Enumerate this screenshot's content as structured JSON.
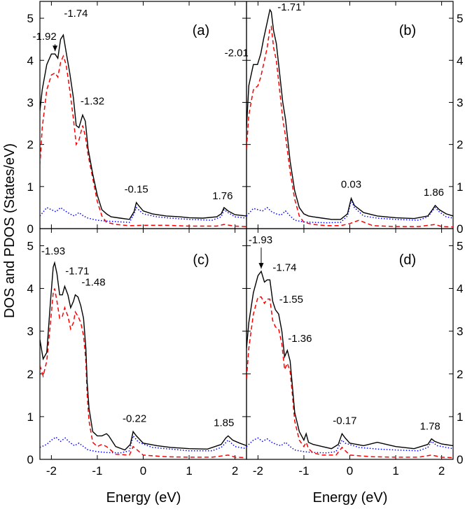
{
  "figure": {
    "ylabel": "DOS and PDOS (States/eV)",
    "xlabels": [
      "Energy (eV)",
      "Energy (eV)"
    ]
  },
  "colors": {
    "total": "#000000",
    "partial_red": "#ff0000",
    "partial_blue": "#0000ff"
  },
  "chart_data": [
    {
      "type": "line",
      "panel": "(a)",
      "xlim": [
        -2.25,
        2.25
      ],
      "ylim": [
        0,
        5.4
      ],
      "xticks": [
        -2,
        -1,
        0,
        1,
        2
      ],
      "yticks": [
        0,
        1,
        2,
        3,
        4,
        5
      ],
      "series": [
        {
          "style": "solid",
          "color": "#000000",
          "x": [
            -2.25,
            -2.2,
            -2.1,
            -2.0,
            -1.92,
            -1.86,
            -1.8,
            -1.74,
            -1.68,
            -1.6,
            -1.52,
            -1.46,
            -1.4,
            -1.32,
            -1.26,
            -1.2,
            -1.1,
            -1.0,
            -0.9,
            -0.8,
            -0.7,
            -0.5,
            -0.3,
            -0.2,
            -0.15,
            -0.1,
            0.0,
            0.2,
            0.5,
            0.8,
            1.0,
            1.3,
            1.6,
            1.7,
            1.76,
            1.85,
            2.0,
            2.25
          ],
          "y": [
            2.8,
            3.3,
            3.9,
            4.15,
            4.15,
            4.05,
            4.5,
            4.6,
            4.2,
            3.7,
            3.1,
            2.45,
            2.4,
            2.7,
            2.55,
            1.9,
            1.3,
            0.8,
            0.45,
            0.35,
            0.28,
            0.25,
            0.22,
            0.4,
            0.62,
            0.55,
            0.42,
            0.35,
            0.3,
            0.28,
            0.26,
            0.25,
            0.28,
            0.35,
            0.5,
            0.42,
            0.33,
            0.3
          ]
        },
        {
          "style": "dashed",
          "color": "#ff0000",
          "x": [
            -2.25,
            -2.2,
            -2.1,
            -2.0,
            -1.92,
            -1.86,
            -1.8,
            -1.74,
            -1.68,
            -1.6,
            -1.52,
            -1.46,
            -1.4,
            -1.32,
            -1.26,
            -1.2,
            -1.1,
            -1.0,
            -0.9,
            -0.8,
            -0.6,
            -0.3,
            0.0,
            0.5,
            1.0,
            1.6,
            1.76,
            2.0,
            2.25
          ],
          "y": [
            1.5,
            2.4,
            3.3,
            3.65,
            3.7,
            3.6,
            3.95,
            4.1,
            3.9,
            3.3,
            2.6,
            2.0,
            2.1,
            2.45,
            2.2,
            1.75,
            1.2,
            0.65,
            0.3,
            0.15,
            0.1,
            0.07,
            0.08,
            0.08,
            0.06,
            0.06,
            0.1,
            0.06,
            0.05
          ]
        },
        {
          "style": "dotted",
          "color": "#0000ff",
          "x": [
            -2.25,
            -2.1,
            -2.0,
            -1.9,
            -1.8,
            -1.7,
            -1.6,
            -1.5,
            -1.4,
            -1.3,
            -1.2,
            -1.0,
            -0.8,
            -0.5,
            -0.3,
            -0.2,
            -0.15,
            -0.1,
            0.0,
            0.3,
            0.6,
            1.0,
            1.5,
            1.7,
            1.76,
            1.85,
            2.0,
            2.25
          ],
          "y": [
            0.3,
            0.5,
            0.45,
            0.4,
            0.5,
            0.42,
            0.35,
            0.3,
            0.38,
            0.3,
            0.25,
            0.2,
            0.18,
            0.16,
            0.15,
            0.35,
            0.5,
            0.45,
            0.35,
            0.28,
            0.25,
            0.22,
            0.2,
            0.28,
            0.45,
            0.38,
            0.28,
            0.25
          ]
        }
      ],
      "annotations": [
        {
          "text": "-1.92",
          "x": -1.92,
          "y": 4.15,
          "arrow": true
        },
        {
          "text": "-1.74",
          "x": -1.74,
          "y": 4.6
        },
        {
          "text": "-1.32",
          "x": -1.32,
          "y": 2.7
        },
        {
          "text": "-0.15",
          "x": -0.15,
          "y": 0.62
        },
        {
          "text": "1.76",
          "x": 1.76,
          "y": 0.5
        }
      ]
    },
    {
      "type": "line",
      "panel": "(b)",
      "xlim": [
        -2.25,
        2.25
      ],
      "ylim": [
        0,
        5.4
      ],
      "xticks": [
        -2,
        -1,
        0,
        1,
        2
      ],
      "yticks": [
        0,
        1,
        2,
        3,
        4,
        5
      ],
      "series": [
        {
          "style": "solid",
          "color": "#000000",
          "x": [
            -2.25,
            -2.2,
            -2.1,
            -2.01,
            -1.94,
            -1.88,
            -1.8,
            -1.74,
            -1.71,
            -1.66,
            -1.6,
            -1.52,
            -1.46,
            -1.4,
            -1.3,
            -1.2,
            -1.1,
            -1.0,
            -0.9,
            -0.8,
            -0.6,
            -0.4,
            -0.2,
            -0.05,
            0.03,
            0.1,
            0.3,
            0.6,
            1.0,
            1.4,
            1.7,
            1.8,
            1.86,
            1.95,
            2.1,
            2.25
          ],
          "y": [
            2.4,
            3.4,
            3.9,
            3.9,
            4.15,
            4.5,
            4.9,
            5.2,
            5.15,
            4.7,
            4.4,
            3.6,
            3.0,
            2.6,
            1.6,
            0.9,
            0.5,
            0.35,
            0.3,
            0.28,
            0.25,
            0.22,
            0.22,
            0.35,
            0.72,
            0.55,
            0.38,
            0.3,
            0.26,
            0.24,
            0.3,
            0.45,
            0.55,
            0.45,
            0.35,
            0.3
          ]
        },
        {
          "style": "dashed",
          "color": "#ff0000",
          "x": [
            -2.25,
            -2.2,
            -2.1,
            -2.0,
            -1.94,
            -1.88,
            -1.8,
            -1.74,
            -1.71,
            -1.66,
            -1.6,
            -1.52,
            -1.46,
            -1.4,
            -1.3,
            -1.2,
            -1.1,
            -1.0,
            -0.8,
            -0.5,
            -0.2,
            0.0,
            0.2,
            0.5,
            1.0,
            1.5,
            1.86,
            2.0,
            2.25
          ],
          "y": [
            1.9,
            2.7,
            3.3,
            3.4,
            3.6,
            3.9,
            4.3,
            4.75,
            4.8,
            4.3,
            4.0,
            3.2,
            2.6,
            2.2,
            1.35,
            0.7,
            0.3,
            0.15,
            0.1,
            0.07,
            0.07,
            0.12,
            0.2,
            0.07,
            0.05,
            0.05,
            0.1,
            0.05,
            0.04
          ]
        },
        {
          "style": "dotted",
          "color": "#0000ff",
          "x": [
            -2.25,
            -2.1,
            -2.0,
            -1.9,
            -1.8,
            -1.7,
            -1.6,
            -1.5,
            -1.4,
            -1.3,
            -1.2,
            -1.0,
            -0.8,
            -0.5,
            -0.2,
            -0.05,
            0.03,
            0.1,
            0.3,
            0.6,
            1.0,
            1.5,
            1.7,
            1.86,
            1.95,
            2.1,
            2.25
          ],
          "y": [
            0.3,
            0.48,
            0.45,
            0.42,
            0.5,
            0.4,
            0.35,
            0.32,
            0.42,
            0.3,
            0.2,
            0.16,
            0.15,
            0.14,
            0.15,
            0.3,
            0.68,
            0.5,
            0.3,
            0.25,
            0.22,
            0.2,
            0.28,
            0.5,
            0.4,
            0.28,
            0.25
          ]
        }
      ],
      "annotations": [
        {
          "text": "-2.01",
          "x": -2.01,
          "y": 3.9
        },
        {
          "text": "-1.71",
          "x": -1.71,
          "y": 5.15
        },
        {
          "text": "0.03",
          "x": 0.03,
          "y": 0.72
        },
        {
          "text": "1.86",
          "x": 1.86,
          "y": 0.55
        }
      ]
    },
    {
      "type": "line",
      "panel": "(c)",
      "xlim": [
        -2.25,
        2.25
      ],
      "ylim": [
        0,
        5.4
      ],
      "xticks": [
        -2,
        -1,
        0,
        1,
        2
      ],
      "yticks": [
        0,
        1,
        2,
        3,
        4,
        5
      ],
      "series": [
        {
          "style": "solid",
          "color": "#000000",
          "x": [
            -2.25,
            -2.18,
            -2.1,
            -2.02,
            -1.96,
            -1.93,
            -1.88,
            -1.82,
            -1.76,
            -1.71,
            -1.64,
            -1.58,
            -1.52,
            -1.48,
            -1.42,
            -1.36,
            -1.3,
            -1.25,
            -1.22,
            -1.18,
            -1.1,
            -1.0,
            -0.9,
            -0.8,
            -0.75,
            -0.6,
            -0.4,
            -0.28,
            -0.22,
            -0.15,
            0.0,
            0.3,
            0.6,
            1.0,
            1.4,
            1.7,
            1.8,
            1.85,
            1.95,
            2.1,
            2.25
          ],
          "y": [
            2.8,
            2.35,
            2.5,
            3.7,
            4.5,
            4.6,
            4.35,
            3.85,
            3.85,
            4.05,
            3.85,
            3.55,
            3.7,
            3.85,
            3.8,
            3.6,
            3.3,
            2.6,
            1.8,
            1.2,
            0.65,
            0.55,
            0.55,
            0.6,
            0.55,
            0.3,
            0.22,
            0.35,
            0.65,
            0.55,
            0.38,
            0.32,
            0.28,
            0.25,
            0.24,
            0.35,
            0.5,
            0.55,
            0.45,
            0.38,
            0.32
          ]
        },
        {
          "style": "dashed",
          "color": "#ff0000",
          "x": [
            -2.25,
            -2.18,
            -2.1,
            -2.02,
            -1.96,
            -1.93,
            -1.88,
            -1.82,
            -1.76,
            -1.71,
            -1.64,
            -1.58,
            -1.52,
            -1.48,
            -1.42,
            -1.36,
            -1.3,
            -1.25,
            -1.22,
            -1.18,
            -1.1,
            -1.0,
            -0.9,
            -0.8,
            -0.6,
            -0.3,
            -0.22,
            0.0,
            0.5,
            1.0,
            1.5,
            1.85,
            2.0,
            2.25
          ],
          "y": [
            2.2,
            1.95,
            2.3,
            3.2,
            3.9,
            4.0,
            3.7,
            3.3,
            3.35,
            3.55,
            3.35,
            3.05,
            3.2,
            3.45,
            3.35,
            3.2,
            2.9,
            2.3,
            1.5,
            0.9,
            0.4,
            0.3,
            0.35,
            0.3,
            0.12,
            0.1,
            0.3,
            0.1,
            0.06,
            0.05,
            0.05,
            0.1,
            0.05,
            0.04
          ]
        },
        {
          "style": "dotted",
          "color": "#0000ff",
          "x": [
            -2.25,
            -2.1,
            -2.0,
            -1.9,
            -1.8,
            -1.7,
            -1.6,
            -1.5,
            -1.4,
            -1.3,
            -1.2,
            -1.0,
            -0.8,
            -0.5,
            -0.3,
            -0.22,
            -0.1,
            0.2,
            0.6,
            1.0,
            1.5,
            1.7,
            1.85,
            2.0,
            2.25
          ],
          "y": [
            0.28,
            0.35,
            0.45,
            0.52,
            0.42,
            0.5,
            0.4,
            0.32,
            0.38,
            0.3,
            0.22,
            0.18,
            0.16,
            0.15,
            0.2,
            0.55,
            0.4,
            0.28,
            0.24,
            0.2,
            0.2,
            0.28,
            0.45,
            0.3,
            0.25
          ]
        }
      ],
      "annotations": [
        {
          "text": "-1.93",
          "x": -1.93,
          "y": 4.6
        },
        {
          "text": "-1.71",
          "x": -1.71,
          "y": 4.05
        },
        {
          "text": "-1.48",
          "x": -1.48,
          "y": 3.85
        },
        {
          "text": "-0.22",
          "x": -0.22,
          "y": 0.65
        },
        {
          "text": "1.85",
          "x": 1.85,
          "y": 0.55
        }
      ]
    },
    {
      "type": "line",
      "panel": "(d)",
      "xlim": [
        -2.25,
        2.25
      ],
      "ylim": [
        0,
        5.4
      ],
      "xticks": [
        -2,
        -1,
        0,
        1,
        2
      ],
      "yticks": [
        0,
        1,
        2,
        3,
        4,
        5
      ],
      "series": [
        {
          "style": "solid",
          "color": "#000000",
          "x": [
            -2.25,
            -2.2,
            -2.1,
            -2.0,
            -1.93,
            -1.86,
            -1.8,
            -1.74,
            -1.68,
            -1.62,
            -1.55,
            -1.48,
            -1.42,
            -1.36,
            -1.3,
            -1.25,
            -1.2,
            -1.1,
            -1.0,
            -0.95,
            -0.9,
            -0.8,
            -0.6,
            -0.4,
            -0.25,
            -0.17,
            -0.1,
            0.0,
            0.3,
            0.6,
            1.0,
            1.4,
            1.7,
            1.78,
            1.85,
            2.0,
            2.25
          ],
          "y": [
            2.6,
            3.2,
            3.9,
            4.3,
            4.4,
            4.15,
            4.2,
            4.2,
            3.7,
            3.5,
            3.4,
            3.0,
            2.4,
            2.55,
            2.3,
            1.7,
            1.1,
            0.65,
            0.45,
            0.6,
            0.4,
            0.35,
            0.3,
            0.25,
            0.35,
            0.6,
            0.5,
            0.38,
            0.32,
            0.4,
            0.3,
            0.25,
            0.35,
            0.48,
            0.42,
            0.36,
            0.32
          ]
        },
        {
          "style": "dashed",
          "color": "#ff0000",
          "x": [
            -2.25,
            -2.2,
            -2.1,
            -2.0,
            -1.93,
            -1.86,
            -1.8,
            -1.74,
            -1.68,
            -1.62,
            -1.55,
            -1.48,
            -1.42,
            -1.36,
            -1.3,
            -1.25,
            -1.2,
            -1.1,
            -1.0,
            -0.95,
            -0.9,
            -0.8,
            -0.6,
            -0.3,
            -0.17,
            0.0,
            0.5,
            1.0,
            1.5,
            1.78,
            2.0,
            2.25
          ],
          "y": [
            1.9,
            2.6,
            3.4,
            3.8,
            3.8,
            3.65,
            3.75,
            3.75,
            3.25,
            3.1,
            3.05,
            2.7,
            2.1,
            2.25,
            2.05,
            1.5,
            0.9,
            0.45,
            0.3,
            0.4,
            0.25,
            0.15,
            0.1,
            0.1,
            0.28,
            0.1,
            0.06,
            0.05,
            0.05,
            0.1,
            0.05,
            0.04
          ]
        },
        {
          "style": "dotted",
          "color": "#0000ff",
          "x": [
            -2.25,
            -2.1,
            -2.0,
            -1.9,
            -1.8,
            -1.7,
            -1.6,
            -1.5,
            -1.4,
            -1.3,
            -1.2,
            -1.0,
            -0.8,
            -0.5,
            -0.3,
            -0.17,
            -0.1,
            0.2,
            0.6,
            1.0,
            1.5,
            1.7,
            1.78,
            1.9,
            2.25
          ],
          "y": [
            0.3,
            0.45,
            0.5,
            0.42,
            0.48,
            0.4,
            0.35,
            0.32,
            0.4,
            0.3,
            0.22,
            0.18,
            0.16,
            0.15,
            0.18,
            0.45,
            0.38,
            0.28,
            0.24,
            0.22,
            0.2,
            0.28,
            0.42,
            0.32,
            0.25
          ]
        }
      ],
      "annotations": [
        {
          "text": "-1.93",
          "x": -1.93,
          "y": 4.4,
          "arrow": true
        },
        {
          "text": "-1.74",
          "x": -1.74,
          "y": 4.2
        },
        {
          "text": "-1.55",
          "x": -1.55,
          "y": 3.4
        },
        {
          "text": "-1.36",
          "x": -1.36,
          "y": 2.55
        },
        {
          "text": "-0.17",
          "x": -0.17,
          "y": 0.6
        },
        {
          "text": "1.78",
          "x": 1.78,
          "y": 0.48
        }
      ]
    }
  ]
}
